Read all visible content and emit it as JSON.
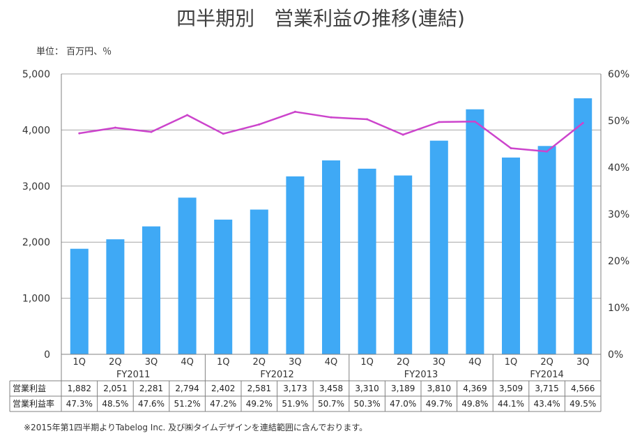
{
  "chart_data": {
    "type": "bar+line",
    "title": "四半期別　営業利益の推移(連結)",
    "unit_label": "単位：  百万円、％",
    "fiscal_years": [
      "FY2011",
      "FY2012",
      "FY2013",
      "FY2014"
    ],
    "categories": [
      "1Q",
      "2Q",
      "3Q",
      "4Q",
      "1Q",
      "2Q",
      "3Q",
      "4Q",
      "1Q",
      "2Q",
      "3Q",
      "4Q",
      "1Q",
      "2Q",
      "3Q"
    ],
    "fiscal_year_of_category": [
      0,
      0,
      0,
      0,
      1,
      1,
      1,
      1,
      2,
      2,
      2,
      2,
      3,
      3,
      3
    ],
    "y_left": {
      "min": 0,
      "max": 5000,
      "ticks": [
        0,
        1000,
        2000,
        3000,
        4000,
        5000
      ],
      "tick_labels": [
        "0",
        "1,000",
        "2,000",
        "3,000",
        "4,000",
        "5,000"
      ]
    },
    "y_right": {
      "min": 0,
      "max": 60,
      "ticks": [
        0,
        10,
        20,
        30,
        40,
        50,
        60
      ],
      "tick_labels": [
        "0%",
        "10%",
        "20%",
        "30%",
        "40%",
        "50%",
        "60%"
      ]
    },
    "series": [
      {
        "name": "営業利益",
        "kind": "bar",
        "axis": "left",
        "color": "#3fa9f5",
        "values": [
          1882,
          2051,
          2281,
          2794,
          2402,
          2581,
          3173,
          3458,
          3310,
          3189,
          3810,
          4369,
          3509,
          3715,
          4566
        ],
        "labels": [
          "1,882",
          "2,051",
          "2,281",
          "2,794",
          "2,402",
          "2,581",
          "3,173",
          "3,458",
          "3,310",
          "3,189",
          "3,810",
          "4,369",
          "3,509",
          "3,715",
          "4,566"
        ]
      },
      {
        "name": "営業利益率",
        "kind": "line",
        "axis": "right",
        "color": "#cc44cc",
        "values": [
          47.3,
          48.5,
          47.6,
          51.2,
          47.2,
          49.2,
          51.9,
          50.7,
          50.3,
          47.0,
          49.7,
          49.8,
          44.1,
          43.4,
          49.5
        ],
        "labels": [
          "47.3%",
          "48.5%",
          "47.6%",
          "51.2%",
          "47.2%",
          "49.2%",
          "51.9%",
          "50.7%",
          "50.3%",
          "47.0%",
          "49.7%",
          "49.8%",
          "44.1%",
          "43.4%",
          "49.5%"
        ]
      }
    ],
    "grid": true,
    "footnote": "※2015年第1四半期よりTabelog Inc. 及び㈱タイムデザインを連結範囲に含んでおります。"
  }
}
